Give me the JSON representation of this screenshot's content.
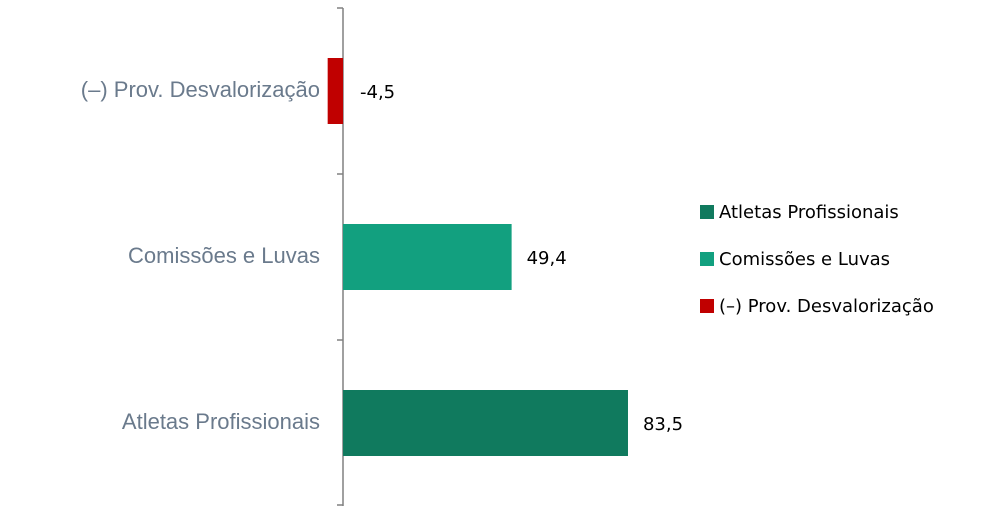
{
  "chart_data": {
    "type": "hbar",
    "categories": [
      "Atletas Profissionais",
      "Comissões e Luvas",
      "(–) Prov. Desvalorização"
    ],
    "values": [
      83.5,
      49.4,
      -4.5
    ],
    "value_labels": [
      "83,5",
      "49,4",
      "-4,5"
    ],
    "colors": [
      "#107a5e",
      "#12a07f",
      "#c00000"
    ],
    "xlim": [
      -10,
      100
    ],
    "legend": "right"
  }
}
